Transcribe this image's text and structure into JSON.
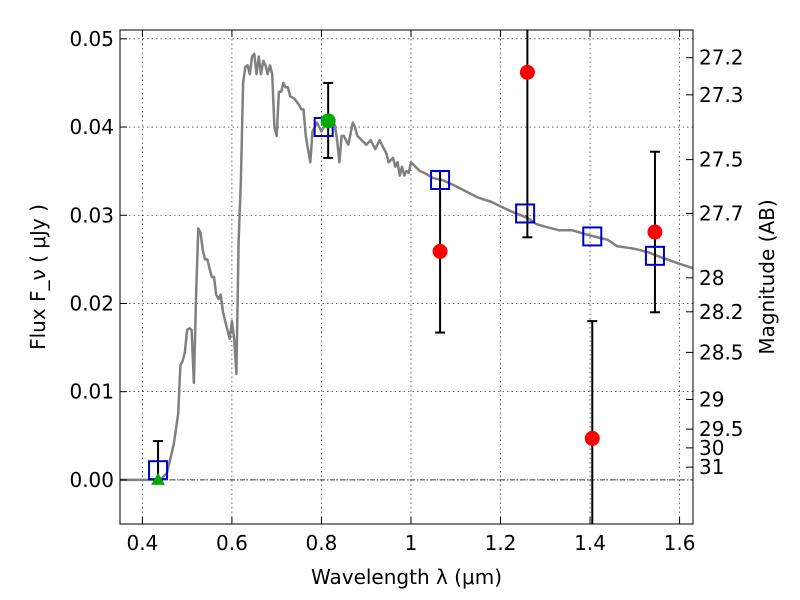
{
  "chart_data": {
    "type": "scatter",
    "xlabel": "Wavelength  λ (μm)",
    "ylabel": "Flux  F_ν  ( μJy )",
    "ylabel_right": "Magnitude (AB)",
    "xlim": [
      0.35,
      1.63
    ],
    "ylim": [
      -0.005,
      0.051
    ],
    "grid": true,
    "x_ticks": [
      {
        "value": 0.4,
        "label": "0.4"
      },
      {
        "value": 0.6,
        "label": "0.6"
      },
      {
        "value": 0.8,
        "label": "0.8"
      },
      {
        "value": 1.0,
        "label": "1"
      },
      {
        "value": 1.2,
        "label": "1.2"
      },
      {
        "value": 1.4,
        "label": "1.4"
      },
      {
        "value": 1.6,
        "label": "1.6"
      }
    ],
    "y_ticks": [
      {
        "value": 0.0,
        "label": "0.00"
      },
      {
        "value": 0.01,
        "label": "0.01"
      },
      {
        "value": 0.02,
        "label": "0.02"
      },
      {
        "value": 0.03,
        "label": "0.03"
      },
      {
        "value": 0.04,
        "label": "0.04"
      },
      {
        "value": 0.05,
        "label": "0.05"
      }
    ],
    "mag_ticks": [
      "27.2",
      "27.3",
      "27.5",
      "27.7",
      "28",
      "28.2",
      "28.5",
      "29",
      "29.5",
      "30",
      "31"
    ],
    "model_sed": {
      "color": "#808080",
      "points": [
        [
          0.35,
          0.0
        ],
        [
          0.42,
          0.0
        ],
        [
          0.44,
          0.0
        ],
        [
          0.455,
          0.0008
        ],
        [
          0.47,
          0.004
        ],
        [
          0.48,
          0.0075
        ],
        [
          0.485,
          0.013
        ],
        [
          0.49,
          0.0135
        ],
        [
          0.495,
          0.0145
        ],
        [
          0.5,
          0.017
        ],
        [
          0.505,
          0.0172
        ],
        [
          0.51,
          0.017
        ],
        [
          0.515,
          0.011
        ],
        [
          0.52,
          0.021
        ],
        [
          0.525,
          0.0285
        ],
        [
          0.53,
          0.028
        ],
        [
          0.535,
          0.026
        ],
        [
          0.54,
          0.025
        ],
        [
          0.545,
          0.025
        ],
        [
          0.55,
          0.024
        ],
        [
          0.555,
          0.023
        ],
        [
          0.56,
          0.023
        ],
        [
          0.565,
          0.021
        ],
        [
          0.57,
          0.0205
        ],
        [
          0.575,
          0.021
        ],
        [
          0.58,
          0.019
        ],
        [
          0.585,
          0.018
        ],
        [
          0.59,
          0.017
        ],
        [
          0.595,
          0.016
        ],
        [
          0.6,
          0.018
        ],
        [
          0.605,
          0.016
        ],
        [
          0.61,
          0.012
        ],
        [
          0.615,
          0.027
        ],
        [
          0.62,
          0.034
        ],
        [
          0.625,
          0.045
        ],
        [
          0.63,
          0.0468
        ],
        [
          0.635,
          0.047
        ],
        [
          0.64,
          0.046
        ],
        [
          0.645,
          0.048
        ],
        [
          0.65,
          0.0483
        ],
        [
          0.655,
          0.046
        ],
        [
          0.66,
          0.048
        ],
        [
          0.665,
          0.046
        ],
        [
          0.67,
          0.0475
        ],
        [
          0.675,
          0.047
        ],
        [
          0.68,
          0.046
        ],
        [
          0.685,
          0.047
        ],
        [
          0.69,
          0.046
        ],
        [
          0.695,
          0.04
        ],
        [
          0.7,
          0.039
        ],
        [
          0.705,
          0.044
        ],
        [
          0.71,
          0.044
        ],
        [
          0.715,
          0.045
        ],
        [
          0.72,
          0.0445
        ],
        [
          0.725,
          0.0445
        ],
        [
          0.73,
          0.0435
        ],
        [
          0.74,
          0.0432
        ],
        [
          0.75,
          0.0425
        ],
        [
          0.755,
          0.042
        ],
        [
          0.76,
          0.042
        ],
        [
          0.765,
          0.039
        ],
        [
          0.77,
          0.0375
        ],
        [
          0.775,
          0.036
        ],
        [
          0.78,
          0.0395
        ],
        [
          0.79,
          0.0405
        ],
        [
          0.8,
          0.0395
        ],
        [
          0.81,
          0.0405
        ],
        [
          0.82,
          0.0408
        ],
        [
          0.83,
          0.0402
        ],
        [
          0.835,
          0.0385
        ],
        [
          0.84,
          0.036
        ],
        [
          0.845,
          0.039
        ],
        [
          0.85,
          0.039
        ],
        [
          0.86,
          0.038
        ],
        [
          0.87,
          0.0405
        ],
        [
          0.875,
          0.04
        ],
        [
          0.88,
          0.039
        ],
        [
          0.89,
          0.0385
        ],
        [
          0.9,
          0.038
        ],
        [
          0.91,
          0.0385
        ],
        [
          0.92,
          0.0375
        ],
        [
          0.93,
          0.0385
        ],
        [
          0.94,
          0.0375
        ],
        [
          0.945,
          0.037
        ],
        [
          0.95,
          0.036
        ],
        [
          0.96,
          0.0365
        ],
        [
          0.965,
          0.0355
        ],
        [
          0.97,
          0.036
        ],
        [
          0.975,
          0.0345
        ],
        [
          0.98,
          0.0355
        ],
        [
          0.985,
          0.0345
        ],
        [
          0.99,
          0.035
        ],
        [
          0.995,
          0.0348
        ],
        [
          1.0,
          0.036
        ],
        [
          1.01,
          0.0355
        ],
        [
          1.02,
          0.035
        ],
        [
          1.03,
          0.0348
        ],
        [
          1.05,
          0.0342
        ],
        [
          1.07,
          0.034
        ],
        [
          1.1,
          0.0333
        ],
        [
          1.15,
          0.032
        ],
        [
          1.18,
          0.0315
        ],
        [
          1.2,
          0.031
        ],
        [
          1.23,
          0.0303
        ],
        [
          1.26,
          0.0297
        ],
        [
          1.28,
          0.029
        ],
        [
          1.3,
          0.0287
        ],
        [
          1.33,
          0.0283
        ],
        [
          1.36,
          0.0283
        ],
        [
          1.4,
          0.0277
        ],
        [
          1.44,
          0.0272
        ],
        [
          1.46,
          0.0265
        ],
        [
          1.5,
          0.0262
        ],
        [
          1.53,
          0.0258
        ],
        [
          1.56,
          0.0252
        ],
        [
          1.6,
          0.0245
        ],
        [
          1.63,
          0.024
        ]
      ]
    },
    "model_photometry": {
      "color": "#0000cc",
      "marker": "open-square",
      "points": [
        {
          "x": 0.435,
          "y": 0.0011
        },
        {
          "x": 0.805,
          "y": 0.04
        },
        {
          "x": 1.065,
          "y": 0.034
        },
        {
          "x": 1.255,
          "y": 0.0302
        },
        {
          "x": 1.405,
          "y": 0.0276
        },
        {
          "x": 1.545,
          "y": 0.0254
        }
      ]
    },
    "observed": [
      {
        "x": 0.435,
        "y": 0.0,
        "yerr_low": 0.0,
        "yerr_high": 0.0044,
        "marker": "triangle",
        "color": "#00aa00"
      },
      {
        "x": 0.815,
        "y": 0.0407,
        "yerr_low": 0.0365,
        "yerr_high": 0.045,
        "marker": "circle",
        "color": "#00aa00"
      },
      {
        "x": 1.065,
        "y": 0.0259,
        "yerr_low": 0.0167,
        "yerr_high": 0.035,
        "marker": "circle",
        "color": "#ff0000"
      },
      {
        "x": 1.26,
        "y": 0.0462,
        "yerr_low": 0.0275,
        "yerr_high": 0.051,
        "marker": "circle",
        "color": "#ff0000"
      },
      {
        "x": 1.405,
        "y": 0.0047,
        "yerr_low": -0.005,
        "yerr_high": 0.018,
        "marker": "circle",
        "color": "#ff0000"
      },
      {
        "x": 1.545,
        "y": 0.0281,
        "yerr_low": 0.019,
        "yerr_high": 0.0372,
        "marker": "circle",
        "color": "#ff0000"
      }
    ],
    "zero_line": {
      "y": 0.0
    }
  }
}
